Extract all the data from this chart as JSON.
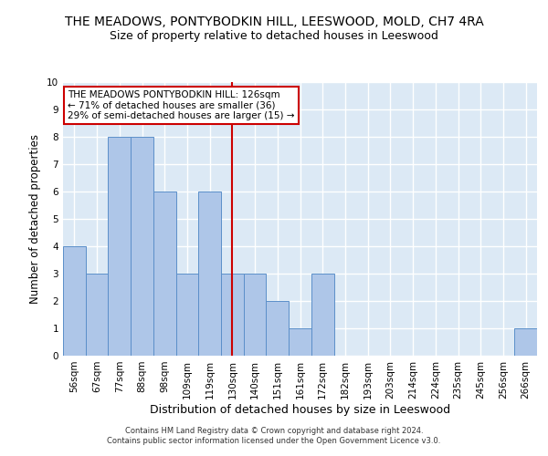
{
  "title": "THE MEADOWS, PONTYBODKIN HILL, LEESWOOD, MOLD, CH7 4RA",
  "subtitle": "Size of property relative to detached houses in Leeswood",
  "xlabel": "Distribution of detached houses by size in Leeswood",
  "ylabel": "Number of detached properties",
  "categories": [
    "56sqm",
    "67sqm",
    "77sqm",
    "88sqm",
    "98sqm",
    "109sqm",
    "119sqm",
    "130sqm",
    "140sqm",
    "151sqm",
    "161sqm",
    "172sqm",
    "182sqm",
    "193sqm",
    "203sqm",
    "214sqm",
    "224sqm",
    "235sqm",
    "245sqm",
    "256sqm",
    "266sqm"
  ],
  "values": [
    4,
    3,
    8,
    8,
    6,
    3,
    6,
    3,
    3,
    2,
    1,
    3,
    0,
    0,
    0,
    0,
    0,
    0,
    0,
    0,
    1
  ],
  "bar_color": "#aec6e8",
  "bar_edge_color": "#5b8fc9",
  "ref_line_index": 7,
  "ref_line_color": "#cc0000",
  "annotation_text": "THE MEADOWS PONTYBODKIN HILL: 126sqm\n← 71% of detached houses are smaller (36)\n29% of semi-detached houses are larger (15) →",
  "annotation_box_facecolor": "#ffffff",
  "annotation_box_edgecolor": "#cc0000",
  "ylim": [
    0,
    10
  ],
  "yticks": [
    0,
    1,
    2,
    3,
    4,
    5,
    6,
    7,
    8,
    9,
    10
  ],
  "background_color": "#dce9f5",
  "grid_color": "#ffffff",
  "footer_line1": "Contains HM Land Registry data © Crown copyright and database right 2024.",
  "footer_line2": "Contains public sector information licensed under the Open Government Licence v3.0.",
  "title_fontsize": 10,
  "subtitle_fontsize": 9,
  "tick_fontsize": 7.5,
  "ylabel_fontsize": 8.5,
  "xlabel_fontsize": 9,
  "annotation_fontsize": 7.5,
  "footer_fontsize": 6
}
